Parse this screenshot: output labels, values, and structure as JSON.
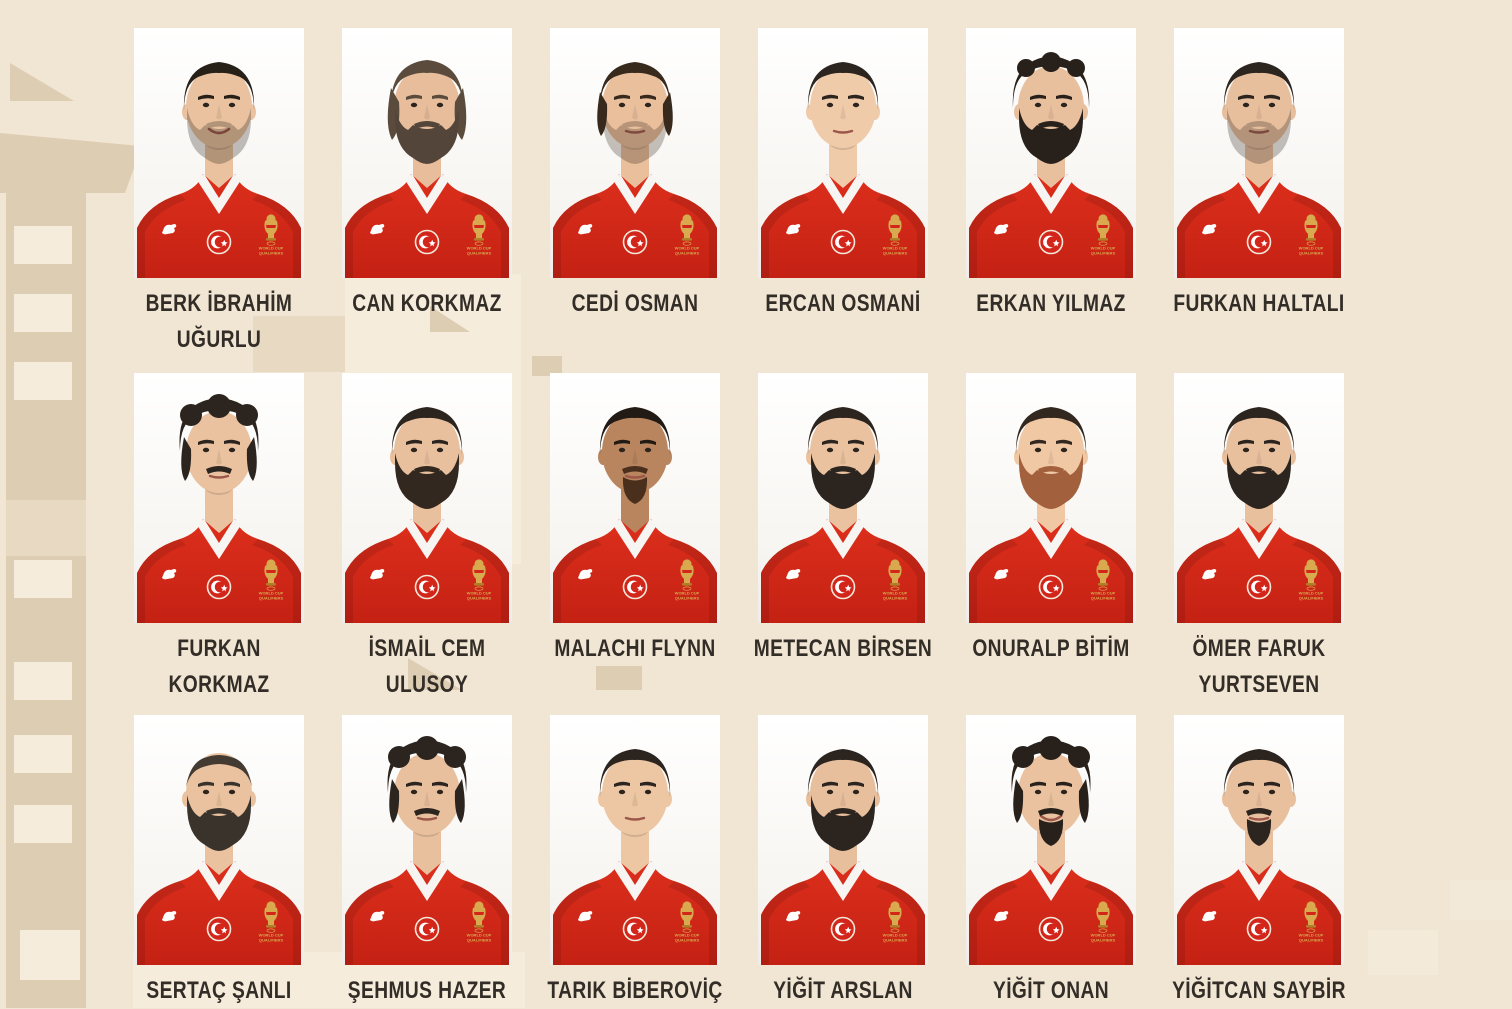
{
  "colors": {
    "page_bg": "#f1e6d4",
    "shape_dark": "#ddcdb3",
    "shape_mid": "#e7d9c2",
    "shape_light": "#f5ecdc",
    "name_text": "#332d27",
    "jersey_red": "#dd2f1c",
    "jersey_red_dark": "#c42114",
    "collar_white": "#f7f5f2",
    "emblem_red": "#d3251a",
    "logo_gold": "#d8a94e",
    "logo_gold_dark": "#b07f2a",
    "photo_bg_top": "#ffffff",
    "photo_bg_bottom": "#efeceA"
  },
  "icons": {
    "brand_mark": "puma-cat-icon",
    "chest_crest": "turkey-crescent-star-icon",
    "competition_mark": "fiba-world-cup-trophy-icon"
  },
  "competition_logo": {
    "lines": [
      "WORLD CUP",
      "QUALIFIERS"
    ]
  },
  "players": [
    {
      "name": "BERK İBRAHİM UĞURLU",
      "appearance": {
        "skin": "#eac29f",
        "hair_color": "#262019",
        "hair": "short",
        "beard": "stubble",
        "beard_color": "#262019",
        "smile": true
      }
    },
    {
      "name": "CAN KORKMAZ",
      "appearance": {
        "skin": "#e7bd9b",
        "hair_color": "#5a4b3d",
        "hair": "long",
        "beard": "full",
        "beard_color": "#54453a",
        "smile": false
      }
    },
    {
      "name": "CEDİ OSMAN",
      "appearance": {
        "skin": "#e9bf9c",
        "hair_color": "#38291d",
        "hair": "wavy",
        "beard": "stubble",
        "beard_color": "#38291d",
        "smile": false
      }
    },
    {
      "name": "ERCAN OSMANİ",
      "appearance": {
        "skin": "#f0cba9",
        "hair_color": "#2c241e",
        "hair": "short",
        "beard": "none",
        "beard_color": "#2c241e",
        "smile": false
      }
    },
    {
      "name": "ERKAN YILMAZ",
      "appearance": {
        "skin": "#e9c09e",
        "hair_color": "#28201a",
        "hair": "curly",
        "beard": "full",
        "beard_color": "#28201a",
        "smile": false
      }
    },
    {
      "name": "FURKAN HALTALI",
      "appearance": {
        "skin": "#e8bf9d",
        "hair_color": "#2c241e",
        "hair": "short",
        "beard": "stubble",
        "beard_color": "#2c241e",
        "smile": false
      }
    },
    {
      "name": "FURKAN KORKMAZ",
      "appearance": {
        "skin": "#eac29f",
        "hair_color": "#2c241e",
        "hair": "mop",
        "beard": "mustache",
        "beard_color": "#2c241e",
        "smile": false
      }
    },
    {
      "name": "İSMAİL CEM ULUSOY",
      "appearance": {
        "skin": "#e9c09e",
        "hair_color": "#2c241e",
        "hair": "short",
        "beard": "full",
        "beard_color": "#32281f",
        "smile": false
      }
    },
    {
      "name": "MALACHI FLYNN",
      "appearance": {
        "skin": "#b8855e",
        "hair_color": "#221a14",
        "hair": "short",
        "beard": "goatee",
        "beard_color": "#4a2f1d",
        "smile": false
      }
    },
    {
      "name": "METECAN BİRSEN",
      "appearance": {
        "skin": "#eac29f",
        "hair_color": "#2c241e",
        "hair": "short",
        "beard": "full",
        "beard_color": "#2c241e",
        "smile": false
      }
    },
    {
      "name": "ONURALP BİTİM",
      "appearance": {
        "skin": "#f0c8a4",
        "hair_color": "#33281f",
        "hair": "short",
        "beard": "full",
        "beard_color": "#a2603c",
        "smile": true
      }
    },
    {
      "name": "ÖMER FARUK YURTSEVEN",
      "appearance": {
        "skin": "#e9c09e",
        "hair_color": "#2c241e",
        "hair": "short",
        "beard": "full",
        "beard_color": "#2c241e",
        "smile": false
      }
    },
    {
      "name": "SERTAÇ ŞANLI",
      "appearance": {
        "skin": "#eac29f",
        "hair_color": "#3a332c",
        "hair": "balding",
        "beard": "full",
        "beard_color": "#3a332c",
        "smile": true
      }
    },
    {
      "name": "ŞEHMUS HAZER",
      "appearance": {
        "skin": "#e9c09e",
        "hair_color": "#2c241e",
        "hair": "mop",
        "beard": "mustache",
        "beard_color": "#2c241e",
        "smile": false
      }
    },
    {
      "name": "TARIK BİBEROVİÇ",
      "appearance": {
        "skin": "#edc6a3",
        "hair_color": "#2c241e",
        "hair": "short",
        "beard": "none",
        "beard_color": "#2c241e",
        "smile": false
      }
    },
    {
      "name": "YİĞİT ARSLAN",
      "appearance": {
        "skin": "#e8bf9d",
        "hair_color": "#2c241e",
        "hair": "short",
        "beard": "full",
        "beard_color": "#2c241e",
        "smile": true
      }
    },
    {
      "name": "YİĞİT ONAN",
      "appearance": {
        "skin": "#eac29f",
        "hair_color": "#28201a",
        "hair": "mop",
        "beard": "goatee",
        "beard_color": "#28201a",
        "smile": true
      }
    },
    {
      "name": "YİĞİTCAN SAYBİR",
      "appearance": {
        "skin": "#e9c09e",
        "hair_color": "#2c241e",
        "hair": "short",
        "beard": "goatee",
        "beard_color": "#2c241e",
        "smile": false
      }
    }
  ]
}
